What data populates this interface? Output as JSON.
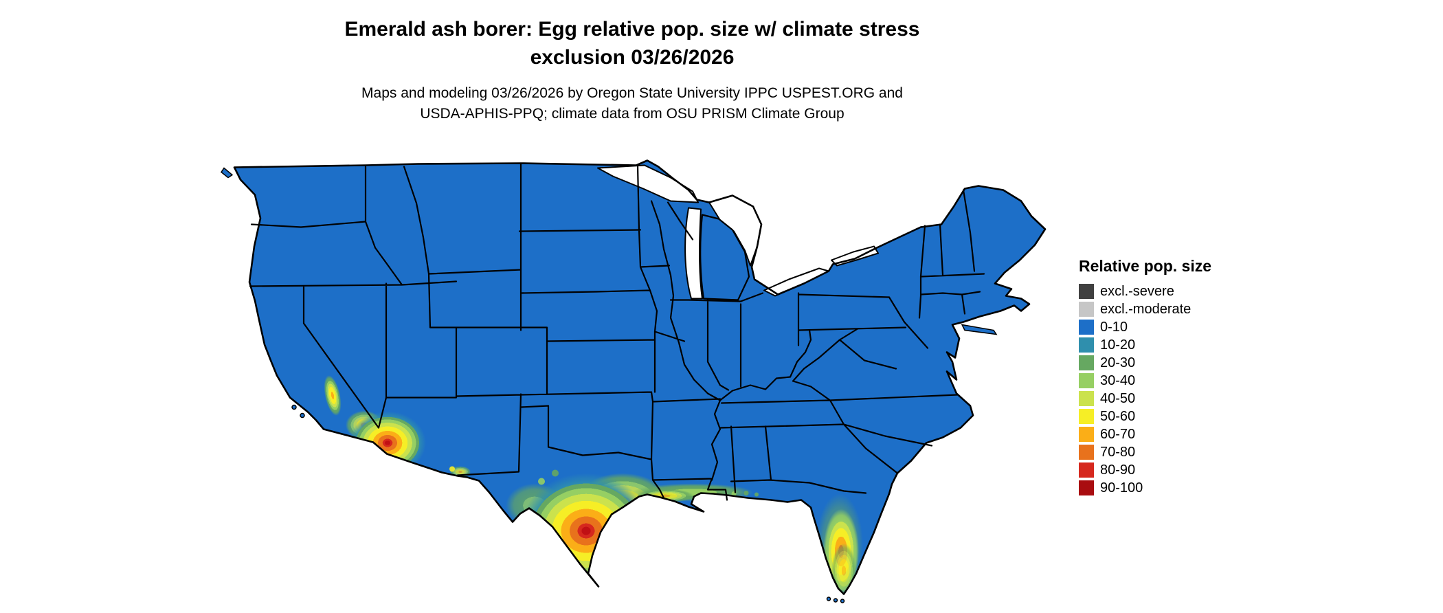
{
  "header": {
    "title_line1": "Emerald ash borer: Egg relative pop. size w/ climate stress",
    "title_line2": "exclusion 03/26/2026",
    "subtitle_line1": "Maps and modeling 03/26/2026 by Oregon State University IPPC USPEST.ORG and",
    "subtitle_line2": "USDA-APHIS-PPQ; climate data from OSU PRISM Climate Group"
  },
  "legend": {
    "title": "Relative pop. size",
    "entries": [
      {
        "label": "excl.-severe",
        "color": "#404040"
      },
      {
        "label": "excl.-moderate",
        "color": "#c6c6c6"
      },
      {
        "label": "0-10",
        "color": "#1d6fc8"
      },
      {
        "label": "10-20",
        "color": "#2f8fad"
      },
      {
        "label": "20-30",
        "color": "#66a861"
      },
      {
        "label": "30-40",
        "color": "#96cf63"
      },
      {
        "label": "40-50",
        "color": "#cbe24d"
      },
      {
        "label": "50-60",
        "color": "#f6ee26"
      },
      {
        "label": "60-70",
        "color": "#fbae17"
      },
      {
        "label": "70-80",
        "color": "#e8721c"
      },
      {
        "label": "80-90",
        "color": "#d6281e"
      },
      {
        "label": "90-100",
        "color": "#a90d10"
      }
    ]
  },
  "map": {
    "colors": {
      "base": "#1d6fc8",
      "border": "#000000",
      "water": "#ffffff"
    }
  }
}
